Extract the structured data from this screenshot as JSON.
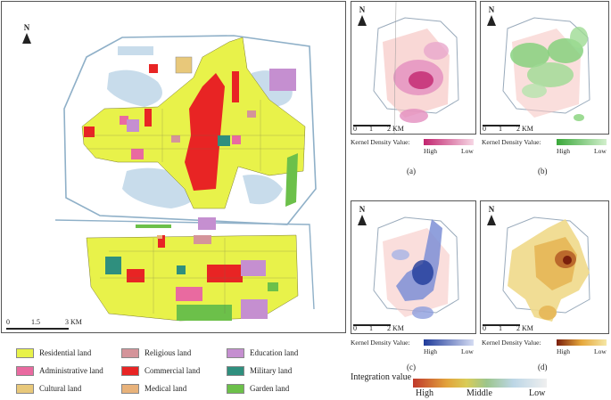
{
  "main_map": {
    "north_label": "N",
    "scale_labels": [
      "0",
      "1.5",
      "3 KM"
    ]
  },
  "land_legend": [
    {
      "label": "Residential land",
      "color": "#e8f24a"
    },
    {
      "label": "Religious land",
      "color": "#d4949a"
    },
    {
      "label": "Education land",
      "color": "#c58fd0"
    },
    {
      "label": "Administrative land",
      "color": "#e96aa0"
    },
    {
      "label": "Commercial land",
      "color": "#e82424"
    },
    {
      "label": "Military land",
      "color": "#2f8f7e"
    },
    {
      "label": "Cultural land",
      "color": "#e8c87a"
    },
    {
      "label": "Medical land",
      "color": "#e8b27a"
    },
    {
      "label": "Garden land",
      "color": "#6cc04a"
    }
  ],
  "panels": [
    {
      "id": "a",
      "label": "(a)",
      "north": "N",
      "scale": [
        "0",
        "1",
        "2 KM"
      ],
      "legend_title": "Kernel Density Value:",
      "high": "High",
      "low": "Low",
      "color_high": "#c2256f",
      "color_low": "#f6d6e4"
    },
    {
      "id": "b",
      "label": "(b)",
      "north": "N",
      "scale": [
        "0",
        "1",
        "2 KM"
      ],
      "legend_title": "Kernel Density Value:",
      "high": "High",
      "low": "Low",
      "color_high": "#3aa83a",
      "color_low": "#d2efcc"
    },
    {
      "id": "c",
      "label": "(c)",
      "north": "N",
      "scale": [
        "0",
        "1",
        "2 KM"
      ],
      "legend_title": "Kernel Density Value:",
      "high": "High",
      "low": "Low",
      "color_high": "#1f3b9a",
      "color_low": "#d4dbf2"
    },
    {
      "id": "d",
      "label": "(d)",
      "north": "N",
      "scale": [
        "0",
        "1",
        "2 KM"
      ],
      "legend_title": "Kernel Density Value:",
      "high": "High",
      "low": "Low",
      "color_high": "#7a1f0c",
      "color_low": "#f5e7a6"
    }
  ],
  "integration_legend": {
    "title": "Integration value",
    "labels": [
      "High",
      "Middle",
      "Low"
    ]
  }
}
